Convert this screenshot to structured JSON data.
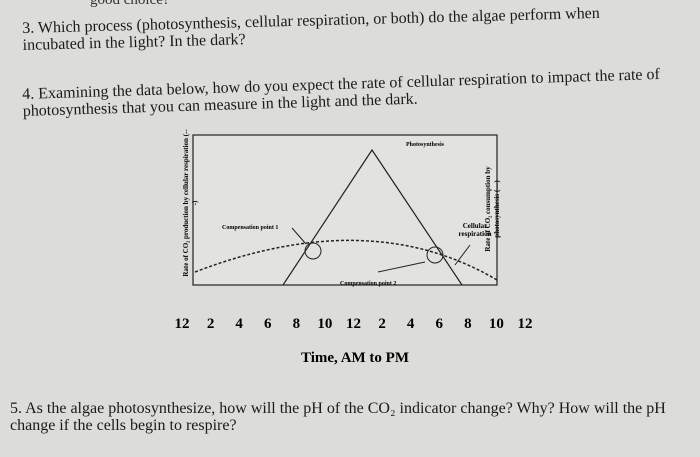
{
  "header": {
    "fragment": "good choice?"
  },
  "questions": [
    {
      "text": "3. Which process (photosynthesis, cellular respiration, or both) do the algae perform when incubated in the light? In the dark?"
    },
    {
      "text": "4. Examining the data below, how do you expect the rate of cellular respiration to impact the rate of photosynthesis that you can measure in the light and the dark."
    },
    {
      "text": "5. As the algae photosynthesize, how will the pH of the CO₂ indicator change? Why? How will the pH change if the cells begin to respire?"
    }
  ],
  "figure": {
    "y_left_label": "Rate of CO₂ production by cellular respiration (---)",
    "y_right_label": "Rate of CO₂ consumption by photosynthesis (—)",
    "photosynthesis_label": "Photosynthesis",
    "respiration_label": "Cellular respiration",
    "compensation_1": "Compensation point 1",
    "compensation_2": "Compensation point 2",
    "x_ticks": [
      "12",
      "2",
      "4",
      "6",
      "8",
      "10",
      "12",
      "2",
      "4",
      "6",
      "8",
      "10",
      "12"
    ],
    "x_label": "Time, AM to PM"
  }
}
